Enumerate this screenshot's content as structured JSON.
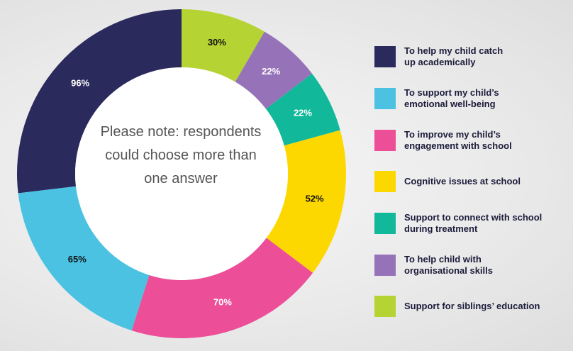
{
  "chart_data": {
    "type": "pie",
    "donut": true,
    "annotation": "Please note: respondents could choose more than one answer",
    "categories": [
      "To help my child catch up academically",
      "To support my child’s emotional well-being",
      "To improve my child’s engagement with school",
      "Cognitive issues at school",
      "Support to connect with school during treatment",
      "To help child with organisational skills",
      "Support for siblings’ education"
    ],
    "values": [
      96,
      65,
      70,
      52,
      22,
      22,
      30
    ],
    "value_labels": [
      "96%",
      "65%",
      "70%",
      "52%",
      "22%",
      "22%",
      "30%"
    ],
    "colors": [
      "#2b2a5c",
      "#4bc2e2",
      "#ec4f98",
      "#fdd800",
      "#12b89a",
      "#9673b9",
      "#b6d334"
    ],
    "legend": "right"
  }
}
